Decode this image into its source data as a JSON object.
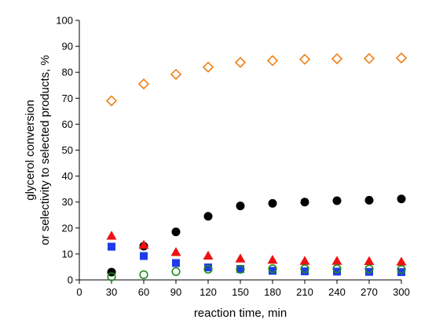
{
  "chart_data": {
    "type": "scatter",
    "xlabel": "reaction time, min",
    "ylabel_lines": [
      "glycerol conversion",
      "or selectivity to selected products, %"
    ],
    "xlim": [
      0,
      300
    ],
    "ylim": [
      0,
      100
    ],
    "xticks": [
      0,
      30,
      60,
      90,
      120,
      150,
      180,
      210,
      240,
      270,
      300
    ],
    "yticks": [
      0,
      10,
      20,
      30,
      40,
      50,
      60,
      70,
      80,
      90,
      100
    ],
    "grid": false,
    "legend": "none",
    "x": [
      30,
      60,
      90,
      120,
      150,
      180,
      210,
      240,
      270,
      300
    ],
    "series": [
      {
        "marker": "open-diamond",
        "color": "#F07F17",
        "values": [
          69,
          75.5,
          79.2,
          82,
          83.8,
          84.5,
          85,
          85.2,
          85.3,
          85.5
        ]
      },
      {
        "marker": "filled-circle",
        "color": "#000000",
        "values": [
          3,
          13,
          18.5,
          24.5,
          28.5,
          29.5,
          30,
          30.5,
          30.7,
          31.2
        ]
      },
      {
        "marker": "filled-triangle",
        "color": "#EE1111",
        "values": [
          17,
          13.5,
          10.7,
          9.3,
          8.2,
          7.7,
          7.3,
          7.3,
          7.2,
          7
        ]
      },
      {
        "marker": "filled-square",
        "color": "#1F3BE8",
        "values": [
          12.8,
          9.2,
          6.5,
          4.8,
          4.2,
          3.5,
          3.3,
          3.2,
          3.1,
          3
        ]
      },
      {
        "marker": "open-circle",
        "color": "#1E8A1E",
        "values": [
          1.2,
          2,
          3.2,
          4.1,
          4.1,
          4.3,
          4.3,
          4.3,
          4.2,
          4
        ]
      }
    ]
  }
}
